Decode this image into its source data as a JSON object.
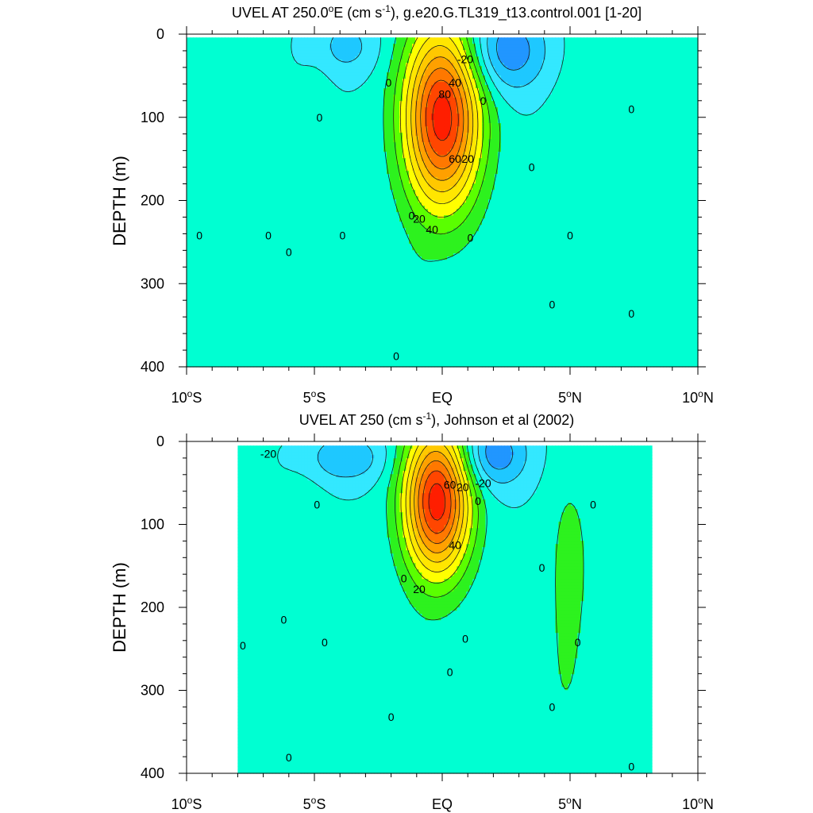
{
  "chart_data": [
    {
      "type": "contour",
      "title_prefix": "UVEL AT 250.0",
      "title_degree": "o",
      "title_units_open": "E (cm s",
      "title_units_exp": "-1",
      "title_rest": "), g.e20.G.TL319_t13.control.001 [1-20]",
      "ylabel": "DEPTH (m)",
      "xlim": [
        -10,
        10
      ],
      "ylim": [
        400,
        0
      ],
      "x_ticks": [
        {
          "value": -10,
          "num": "10",
          "hemi": "S"
        },
        {
          "value": -5,
          "num": "5",
          "hemi": "S"
        },
        {
          "value": 0,
          "num": "EQ",
          "hemi": ""
        },
        {
          "value": 5,
          "num": "5",
          "hemi": "N"
        },
        {
          "value": 10,
          "num": "10",
          "hemi": "N"
        }
      ],
      "y_ticks": [
        "0",
        "100",
        "200",
        "300",
        "400"
      ],
      "data_xrange": [
        -10,
        10
      ],
      "data_depth_range": [
        4,
        400
      ],
      "contour_interval": 10,
      "features": [
        {
          "kind": "eastward_max",
          "lon": 0.0,
          "depth": 100,
          "value": 95,
          "lon_halfwidth": 1.5,
          "depth_halfwidth": 110
        },
        {
          "kind": "westward",
          "lon": 2.5,
          "depth": 20,
          "value": -30,
          "lon_halfwidth": 1.6,
          "depth_halfwidth": 50
        },
        {
          "kind": "westward",
          "lon": -3.8,
          "depth": 15,
          "value": -15,
          "lon_halfwidth": 1.3,
          "depth_halfwidth": 35
        },
        {
          "kind": "eastward",
          "lon": -4.8,
          "depth": 180,
          "value": 7,
          "lon_halfwidth": 0.6,
          "depth_halfwidth": 160
        },
        {
          "kind": "eastward",
          "lon": -8.5,
          "depth": 330,
          "value": 6,
          "lon_halfwidth": 1.5,
          "depth_halfwidth": 150
        },
        {
          "kind": "eastward",
          "lon": 5.5,
          "depth": 200,
          "value": 8,
          "lon_halfwidth": 1.3,
          "depth_halfwidth": 220
        },
        {
          "kind": "eastward",
          "lon": 7.8,
          "depth": 380,
          "value": 5,
          "lon_halfwidth": 0.6,
          "depth_halfwidth": 90
        },
        {
          "kind": "eastward",
          "lon": -1.0,
          "depth": 350,
          "value": 5,
          "lon_halfwidth": 0.8,
          "depth_halfwidth": 100
        }
      ],
      "contour_labels": [
        {
          "text": "-20",
          "lon": 0.9,
          "depth": 30
        },
        {
          "text": "40",
          "lon": 0.5,
          "depth": 58
        },
        {
          "text": "80",
          "lon": 0.1,
          "depth": 72
        },
        {
          "text": "0",
          "lon": -2.1,
          "depth": 58
        },
        {
          "text": "0",
          "lon": 1.6,
          "depth": 80
        },
        {
          "text": "0",
          "lon": -4.8,
          "depth": 100
        },
        {
          "text": "60",
          "lon": 0.5,
          "depth": 150
        },
        {
          "text": "20",
          "lon": 1.0,
          "depth": 150
        },
        {
          "text": "20",
          "lon": -0.9,
          "depth": 222
        },
        {
          "text": "40",
          "lon": -0.4,
          "depth": 235
        },
        {
          "text": "0",
          "lon": -1.2,
          "depth": 218
        },
        {
          "text": "0",
          "lon": 1.1,
          "depth": 245
        },
        {
          "text": "0",
          "lon": 3.5,
          "depth": 160
        },
        {
          "text": "0",
          "lon": 7.4,
          "depth": 90
        },
        {
          "text": "0",
          "lon": 5.0,
          "depth": 242
        },
        {
          "text": "0",
          "lon": -9.5,
          "depth": 242
        },
        {
          "text": "0",
          "lon": -6.8,
          "depth": 242
        },
        {
          "text": "0",
          "lon": -6.0,
          "depth": 262
        },
        {
          "text": "0",
          "lon": -3.9,
          "depth": 242
        },
        {
          "text": "0",
          "lon": 4.3,
          "depth": 325
        },
        {
          "text": "0",
          "lon": 7.4,
          "depth": 336
        },
        {
          "text": "0",
          "lon": -1.8,
          "depth": 387
        }
      ]
    },
    {
      "type": "contour",
      "title_prefix": "UVEL AT 250 (cm s",
      "title_units_exp": "-1",
      "title_rest": "), Johnson et al (2002)",
      "ylabel": "DEPTH (m)",
      "xlim": [
        -10,
        10
      ],
      "ylim": [
        400,
        0
      ],
      "x_ticks": [
        {
          "value": -10,
          "num": "10",
          "hemi": "S"
        },
        {
          "value": -5,
          "num": "5",
          "hemi": "S"
        },
        {
          "value": 0,
          "num": "EQ",
          "hemi": ""
        },
        {
          "value": 5,
          "num": "5",
          "hemi": "N"
        },
        {
          "value": 10,
          "num": "10",
          "hemi": "N"
        }
      ],
      "y_ticks": [
        "0",
        "100",
        "200",
        "300",
        "400"
      ],
      "data_xrange": [
        -8,
        8.2
      ],
      "data_depth_range": [
        5,
        400
      ],
      "contour_interval": 10,
      "features": [
        {
          "kind": "eastward_max",
          "lon": -0.2,
          "depth": 72,
          "value": 95,
          "lon_halfwidth": 1.3,
          "depth_halfwidth": 90
        },
        {
          "kind": "westward",
          "lon": 2.0,
          "depth": 15,
          "value": -30,
          "lon_halfwidth": 1.3,
          "depth_halfwidth": 40
        },
        {
          "kind": "westward",
          "lon": -3.8,
          "depth": 20,
          "value": -20,
          "lon_halfwidth": 1.6,
          "depth_halfwidth": 30
        },
        {
          "kind": "eastward",
          "lon": -5.3,
          "depth": 180,
          "value": 9,
          "lon_halfwidth": 0.8,
          "depth_halfwidth": 140
        },
        {
          "kind": "eastward",
          "lon": 5.0,
          "depth": 140,
          "value": 12,
          "lon_halfwidth": 0.9,
          "depth_halfwidth": 120
        },
        {
          "kind": "eastward",
          "lon": 4.8,
          "depth": 300,
          "value": 7,
          "lon_halfwidth": 0.9,
          "depth_halfwidth": 110
        },
        {
          "kind": "eastward",
          "lon": -0.9,
          "depth": 330,
          "value": 5,
          "lon_halfwidth": 1.1,
          "depth_halfwidth": 120
        }
      ],
      "contour_labels": [
        {
          "text": "-20",
          "lon": -6.8,
          "depth": 15
        },
        {
          "text": "60",
          "lon": 0.3,
          "depth": 52
        },
        {
          "text": "20",
          "lon": 0.8,
          "depth": 55
        },
        {
          "text": "-20",
          "lon": 1.6,
          "depth": 50
        },
        {
          "text": "0",
          "lon": 1.4,
          "depth": 72
        },
        {
          "text": "0",
          "lon": -4.9,
          "depth": 76
        },
        {
          "text": "40",
          "lon": 0.5,
          "depth": 125
        },
        {
          "text": "0",
          "lon": -1.5,
          "depth": 165
        },
        {
          "text": "20",
          "lon": -0.9,
          "depth": 178
        },
        {
          "text": "0",
          "lon": 3.9,
          "depth": 152
        },
        {
          "text": "0",
          "lon": 5.9,
          "depth": 76
        },
        {
          "text": "0",
          "lon": -6.2,
          "depth": 215
        },
        {
          "text": "0",
          "lon": -7.8,
          "depth": 246
        },
        {
          "text": "0",
          "lon": -4.6,
          "depth": 242
        },
        {
          "text": "0",
          "lon": 0.9,
          "depth": 238
        },
        {
          "text": "0",
          "lon": 5.3,
          "depth": 242
        },
        {
          "text": "0",
          "lon": 0.3,
          "depth": 278
        },
        {
          "text": "0",
          "lon": -2.0,
          "depth": 332
        },
        {
          "text": "0",
          "lon": 4.3,
          "depth": 320
        },
        {
          "text": "0",
          "lon": -6.0,
          "depth": 381
        },
        {
          "text": "0",
          "lon": 7.4,
          "depth": 392
        }
      ]
    }
  ]
}
